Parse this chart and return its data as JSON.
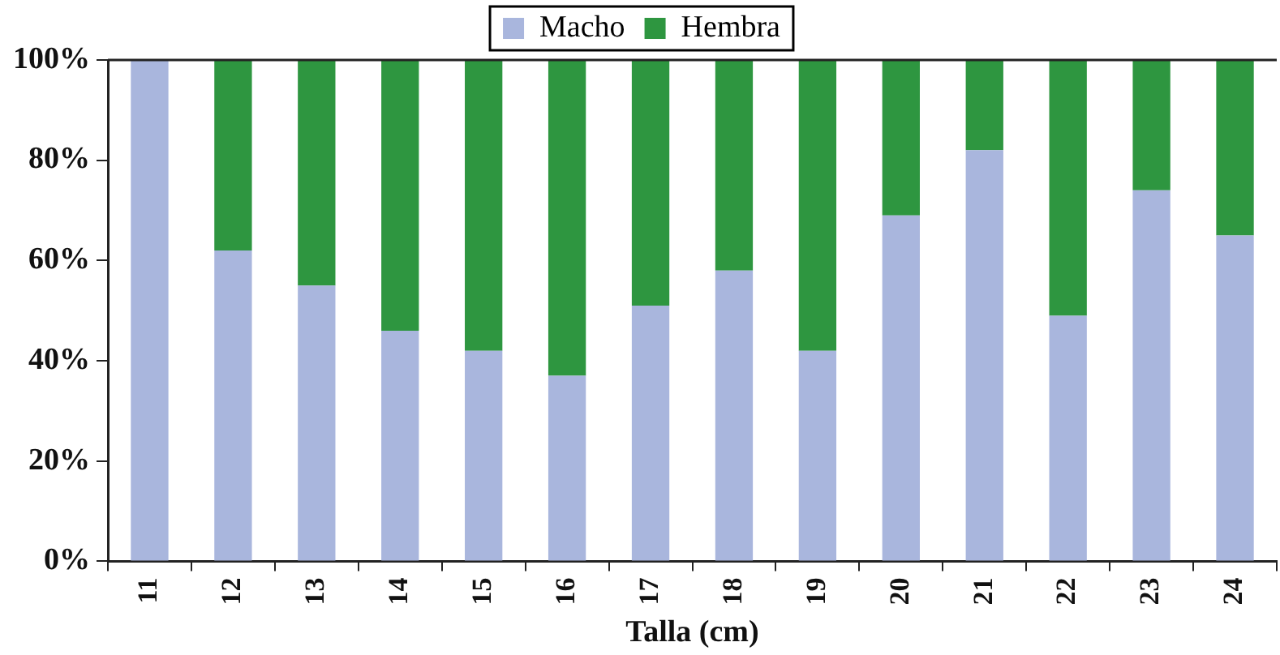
{
  "chart_data": {
    "type": "bar",
    "stacked": true,
    "xlabel": "Talla (cm)",
    "categories": [
      "11",
      "12",
      "13",
      "14",
      "15",
      "16",
      "17",
      "18",
      "19",
      "20",
      "21",
      "22",
      "23",
      "24"
    ],
    "series": [
      {
        "name": "Macho",
        "color": "#a9b6dd",
        "values": [
          100,
          62,
          55,
          46,
          42,
          37,
          51,
          58,
          42,
          69,
          82,
          49,
          74,
          65
        ]
      },
      {
        "name": "Hembra",
        "color": "#2e9640",
        "values": [
          0,
          38,
          45,
          54,
          58,
          63,
          49,
          42,
          58,
          31,
          18,
          51,
          26,
          35
        ]
      }
    ],
    "ylim": [
      0,
      100
    ],
    "yticks": [
      {
        "value": 0,
        "label": "0%"
      },
      {
        "value": 20,
        "label": "20%"
      },
      {
        "value": 40,
        "label": "40%"
      },
      {
        "value": 60,
        "label": "60%"
      },
      {
        "value": 80,
        "label": "80%"
      },
      {
        "value": 100,
        "label": "100%"
      }
    ],
    "grid": false,
    "legend": "top"
  }
}
